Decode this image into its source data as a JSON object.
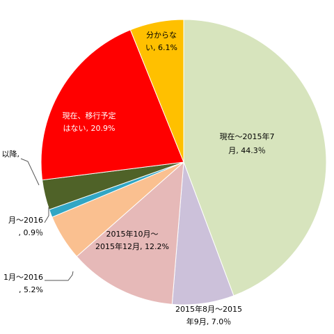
{
  "chart_data": {
    "type": "pie",
    "start": "12 o'clock, clockwise",
    "slices": [
      {
        "label_lines": [
          "現在～2015年7",
          "月, 44.3％"
        ],
        "value": 44.3,
        "color": "#d7e4bd",
        "text_color": "#000000"
      },
      {
        "label_lines": [
          "2015年8月～2015",
          "年9月, 7.0％"
        ],
        "value": 7.0,
        "color": "#ccc1da",
        "text_color": "#000000"
      },
      {
        "label_lines": [
          "2015年10月～",
          "2015年12月, 12.2%"
        ],
        "value": 12.2,
        "color": "#e6b9b8",
        "text_color": "#000000"
      },
      {
        "label_lines": [
          "1月～2016",
          ", 5.2%"
        ],
        "value": 5.2,
        "color": "#fac090",
        "text_color": "#000000"
      },
      {
        "label_lines": [
          "月～2016",
          ", 0.9％"
        ],
        "value": 0.9,
        "color": "#31a6c4",
        "text_color": "#000000"
      },
      {
        "label_lines": [
          "以降,"
        ],
        "value": 3.4,
        "color": "#4f6228",
        "text_color": "#000000"
      },
      {
        "label_lines": [
          "現在、移行予定",
          "はない, 20.9%"
        ],
        "value": 20.9,
        "color": "#ff0000",
        "text_color": "#ffffff"
      },
      {
        "label_lines": [
          "分からな",
          "い, 6.1%"
        ],
        "value": 6.1,
        "color": "#ffc000",
        "text_color": "#000000"
      }
    ]
  }
}
